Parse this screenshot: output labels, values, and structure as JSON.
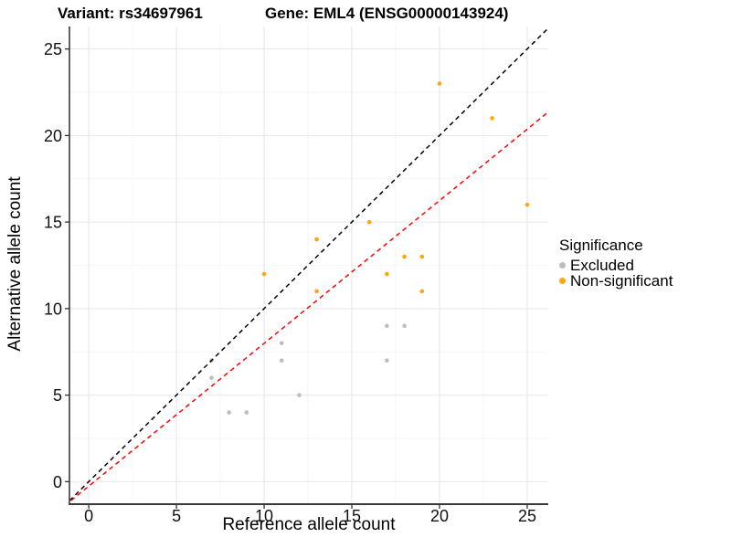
{
  "chart_data": {
    "type": "scatter",
    "title_left": "Variant: rs34697961",
    "title_right": "Gene: EML4 (ENSG00000143924)",
    "xlabel": "Reference allele count",
    "ylabel": "Alternative allele count",
    "xlim": [
      -1.1,
      26.2
    ],
    "ylim": [
      -1.3,
      26.3
    ],
    "xticks": [
      0,
      5,
      10,
      15,
      20,
      25
    ],
    "yticks": [
      0,
      5,
      10,
      15,
      20,
      25
    ],
    "minor_xticks": [
      2.5,
      7.5,
      12.5,
      17.5,
      22.5
    ],
    "minor_yticks": [
      2.5,
      7.5,
      12.5,
      17.5,
      22.5
    ],
    "grid": "major+minor",
    "legend": {
      "title": "Significance",
      "position": "right",
      "items": [
        {
          "label": "Excluded",
          "color": "#BDBDBD"
        },
        {
          "label": "Non-significant",
          "color": "#FFA510"
        }
      ]
    },
    "series": [
      {
        "name": "Excluded",
        "color": "#BDBDBD",
        "points": [
          [
            7,
            7
          ],
          [
            7,
            6
          ],
          [
            8,
            4
          ],
          [
            9,
            4
          ],
          [
            11,
            8
          ],
          [
            11,
            7
          ],
          [
            12,
            5
          ],
          [
            17,
            9
          ],
          [
            17,
            7
          ],
          [
            18,
            9
          ]
        ]
      },
      {
        "name": "Non-significant",
        "color": "#FFA510",
        "points": [
          [
            10,
            12
          ],
          [
            13,
            14
          ],
          [
            13,
            11
          ],
          [
            16,
            15
          ],
          [
            17,
            12
          ],
          [
            18,
            13
          ],
          [
            19,
            13
          ],
          [
            19,
            11
          ],
          [
            20,
            23
          ],
          [
            23,
            21
          ],
          [
            25,
            16
          ]
        ]
      }
    ],
    "lines": [
      {
        "name": "identity",
        "slope": 1,
        "intercept": 0,
        "color": "#000000",
        "style": "dashed"
      },
      {
        "name": "fit",
        "slope": 0.825,
        "intercept": -0.26,
        "color": "#FF0000",
        "style": "dashed"
      }
    ]
  },
  "colors": {
    "background": "#FFFFFF",
    "grid_major": "#E7E7E7",
    "grid_minor": "#F3F3F3",
    "axis_line": "#3A3A3A",
    "tick_mark": "#333333",
    "text": "#000000"
  }
}
